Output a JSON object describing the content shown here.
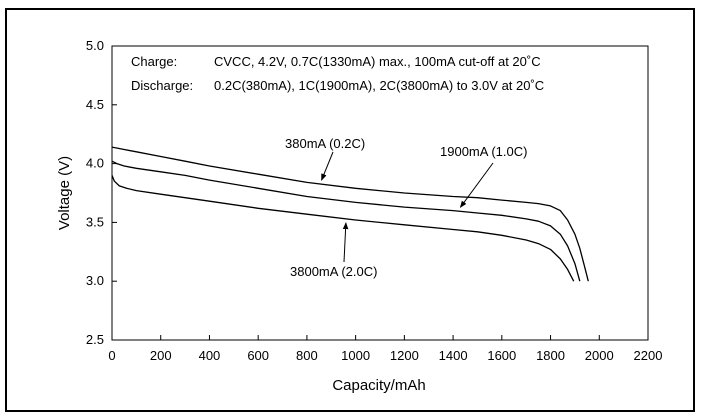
{
  "chart_data": {
    "type": "line",
    "title": "",
    "xlabel": "Capacity/mAh",
    "ylabel": "Voltage (V)",
    "xlim": [
      0,
      2200
    ],
    "ylim": [
      2.5,
      5.0
    ],
    "x_ticks": [
      "0",
      "200",
      "400",
      "600",
      "800",
      "1000",
      "1200",
      "1400",
      "1600",
      "1800",
      "2000",
      "2200"
    ],
    "y_ticks": [
      "2.5",
      "3.0",
      "3.5",
      "4.0",
      "4.5",
      "5.0"
    ],
    "grid": false,
    "notes": [
      {
        "label": "Charge:",
        "text": "CVCC, 4.2V, 0.7C(1330mA) max., 100mA cut-off at 20˚C"
      },
      {
        "label": "Discharge:",
        "text": "0.2C(380mA), 1C(1900mA), 2C(3800mA) to 3.0V at 20˚C"
      }
    ],
    "series": [
      {
        "name": "380mA (0.2C)",
        "color": "#000000",
        "x": [
          0,
          50,
          100,
          200,
          300,
          400,
          600,
          800,
          1000,
          1200,
          1400,
          1500,
          1600,
          1700,
          1750,
          1800,
          1840,
          1870,
          1900,
          1920,
          1940,
          1955
        ],
        "y": [
          4.14,
          4.12,
          4.1,
          4.06,
          4.02,
          3.98,
          3.91,
          3.84,
          3.79,
          3.75,
          3.72,
          3.71,
          3.69,
          3.67,
          3.66,
          3.64,
          3.6,
          3.52,
          3.4,
          3.28,
          3.12,
          3.0
        ]
      },
      {
        "name": "1900mA (1.0C)",
        "color": "#000000",
        "x": [
          0,
          20,
          50,
          100,
          200,
          300,
          400,
          600,
          800,
          1000,
          1200,
          1400,
          1500,
          1600,
          1700,
          1750,
          1800,
          1840,
          1870,
          1900,
          1920
        ],
        "y": [
          4.02,
          4.0,
          3.98,
          3.96,
          3.93,
          3.9,
          3.86,
          3.79,
          3.72,
          3.67,
          3.63,
          3.6,
          3.58,
          3.56,
          3.53,
          3.51,
          3.47,
          3.4,
          3.3,
          3.15,
          3.0
        ]
      },
      {
        "name": "3800mA (2.0C)",
        "color": "#000000",
        "x": [
          0,
          10,
          30,
          60,
          100,
          200,
          300,
          400,
          600,
          800,
          1000,
          1200,
          1400,
          1500,
          1600,
          1700,
          1750,
          1800,
          1840,
          1870,
          1895
        ],
        "y": [
          3.9,
          3.85,
          3.81,
          3.79,
          3.77,
          3.74,
          3.71,
          3.68,
          3.62,
          3.57,
          3.52,
          3.48,
          3.44,
          3.42,
          3.39,
          3.35,
          3.32,
          3.27,
          3.19,
          3.1,
          3.0
        ]
      }
    ],
    "annotations": [
      {
        "text": "380mA (0.2C)",
        "series": 0,
        "point_x": 860
      },
      {
        "text": "1900mA (1.0C)",
        "series": 1,
        "point_x": 1430
      },
      {
        "text": "3800mA (2.0C)",
        "series": 2,
        "point_x": 960
      }
    ]
  }
}
